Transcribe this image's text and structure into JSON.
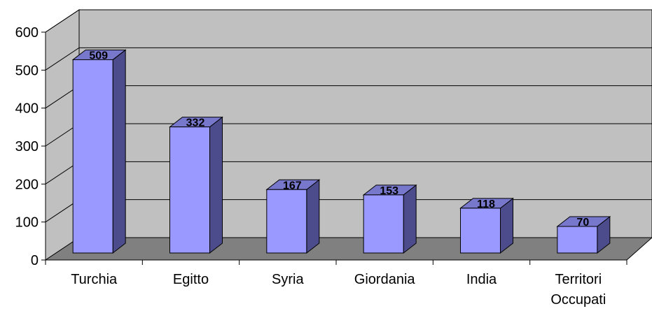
{
  "chart_data": {
    "type": "bar",
    "title": "",
    "xlabel": "",
    "ylabel": "",
    "categories": [
      "Turchia",
      "Egitto",
      "Syria",
      "Giordania",
      "India",
      "Territori Occupati"
    ],
    "category_lines": [
      [
        "Turchia"
      ],
      [
        "Egitto"
      ],
      [
        "Syria"
      ],
      [
        "Giordania"
      ],
      [
        "India"
      ],
      [
        "Territori",
        "Occupati"
      ]
    ],
    "values": [
      509,
      332,
      167,
      153,
      118,
      70
    ],
    "data_labels": [
      "509",
      "332",
      "167",
      "153",
      "118",
      "70"
    ],
    "ylim": [
      0,
      600
    ],
    "yticks": [
      0,
      100,
      200,
      300,
      400,
      500,
      600
    ],
    "ytick_labels": [
      "0",
      "100",
      "200",
      "300",
      "400",
      "500",
      "600"
    ],
    "grid": true,
    "legend": "none",
    "style": "3d-column",
    "colors": {
      "bar_front": "#9999ff",
      "bar_side": "#4c4c8c",
      "bar_top": "#7777cc",
      "wall": "#c0c0c0",
      "floor": "#808080",
      "gridline": "#000000"
    }
  }
}
